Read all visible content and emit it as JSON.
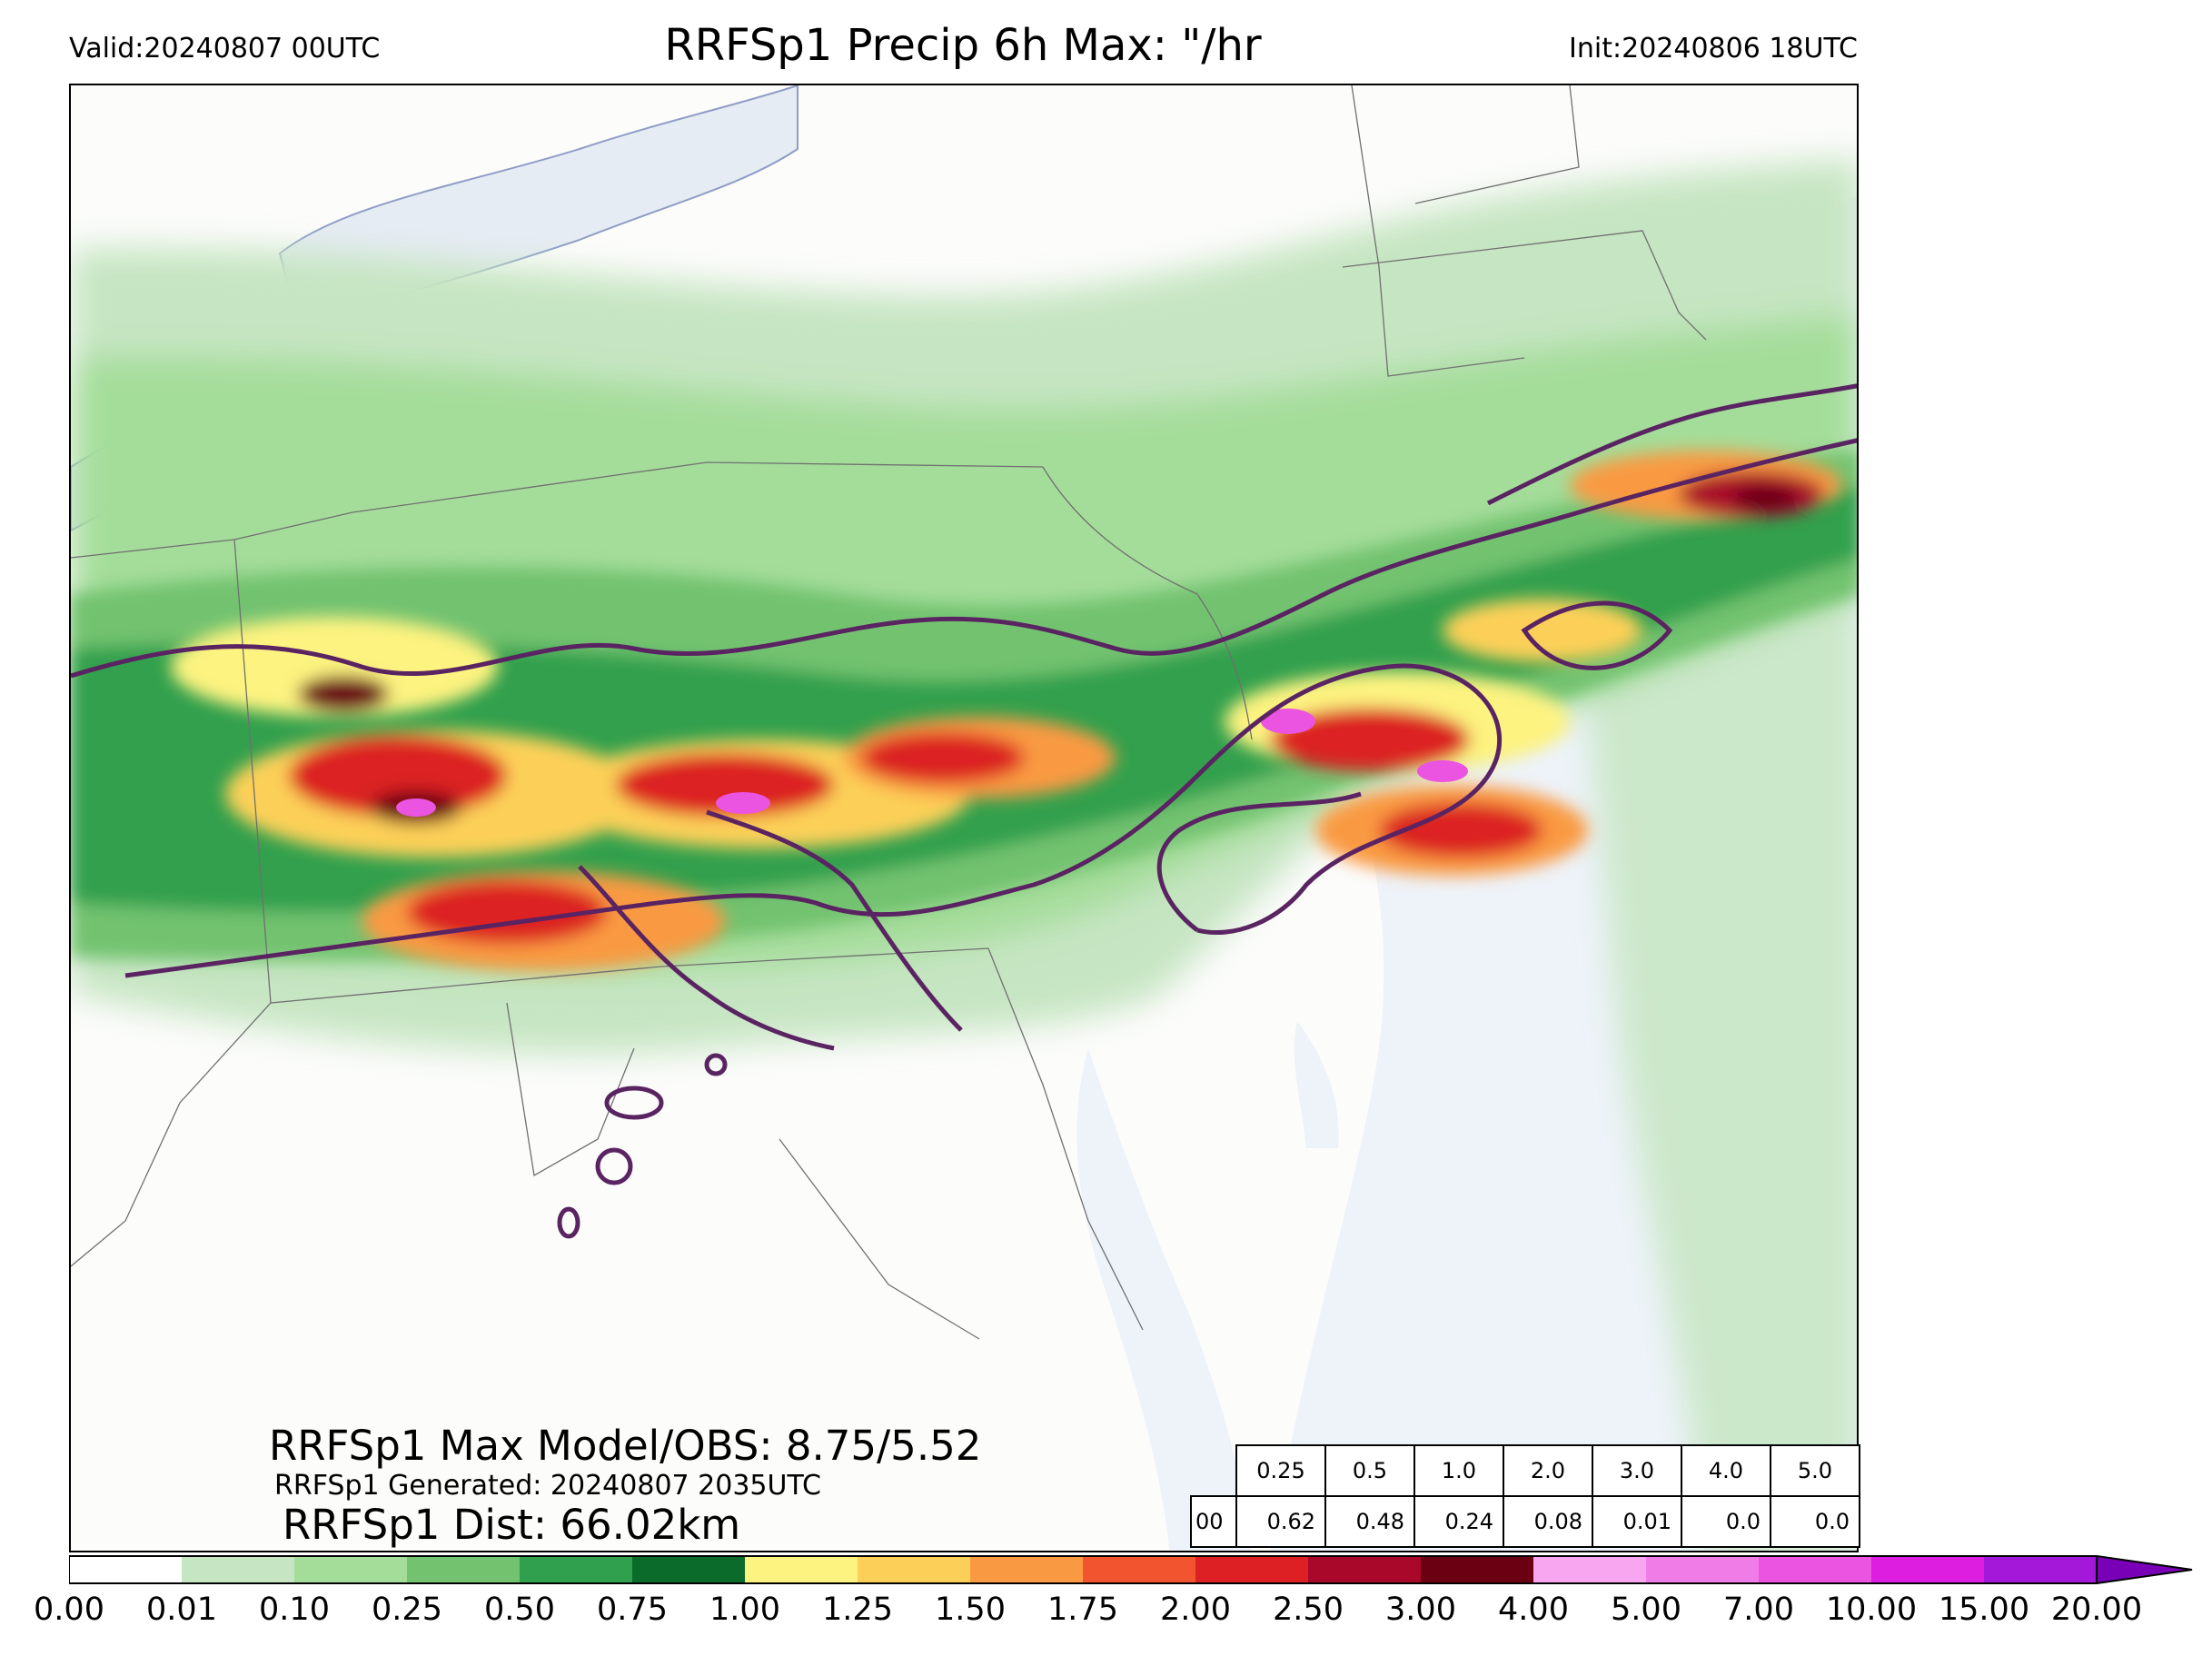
{
  "header": {
    "valid": "Valid:20240807 00UTC",
    "title": "RRFSp1 Precip 6h Max: \"/hr",
    "init": "Init:20240806 18UTC"
  },
  "stats": {
    "max_line": "RRFSp1 Max Model/OBS: 8.75/5.52",
    "generated_line": "RRFSp1 Generated: 20240807 2035UTC",
    "dist_line": "RRFSp1 Dist: 66.02km"
  },
  "table": {
    "thresholds": [
      "0.25",
      "0.5",
      "1.0",
      "2.0",
      "3.0",
      "4.0",
      "5.0"
    ],
    "row_label": "00",
    "values": [
      "0.62",
      "0.48",
      "0.24",
      "0.08",
      "0.01",
      "0.0",
      "0.0"
    ]
  },
  "colorbar": {
    "ticks": [
      "0.00",
      "0.01",
      "0.10",
      "0.25",
      "0.50",
      "0.75",
      "1.00",
      "1.25",
      "1.50",
      "1.75",
      "2.00",
      "2.50",
      "3.00",
      "4.00",
      "5.00",
      "7.00",
      "10.00",
      "15.00",
      "20.00"
    ],
    "colors": [
      "#ffffff",
      "#c6e5c2",
      "#a4dd9a",
      "#72c270",
      "#30a04e",
      "#0b6b2b",
      "#fdf380",
      "#fcd058",
      "#f99a42",
      "#f35430",
      "#dc2024",
      "#a9082a",
      "#6a0012",
      "#f8a6ef",
      "#f07de7",
      "#ea54e0",
      "#dd1de0",
      "#a418d9"
    ],
    "extend_color": "#7a00b8"
  },
  "map_colors": {
    "land": "#fcfcfb",
    "water": "#eef3f9",
    "lake": "#e6ecf4",
    "observed_contour": "#5a2462",
    "boundary": "#707070"
  }
}
